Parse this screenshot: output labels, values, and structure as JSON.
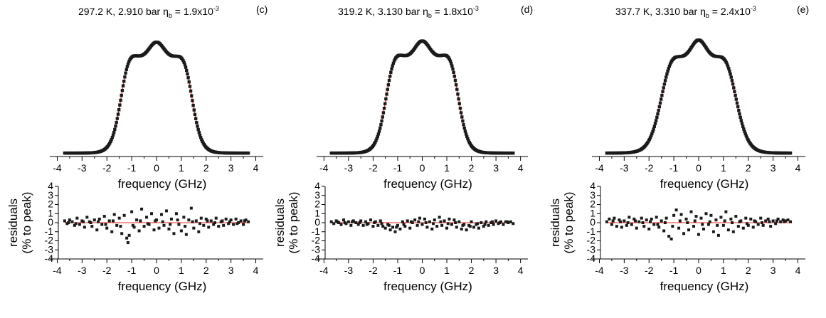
{
  "colors": {
    "data_points": "#1a1a1a",
    "fit_line": "#e03020",
    "axes": "#000000"
  },
  "panels": [
    {
      "letter": "(c)",
      "title": "297.2 K, 2.910 bar η",
      "title_sub": "b",
      "title_tail": " = 1.9x10",
      "title_sup": "-3"
    },
    {
      "letter": "(d)",
      "title": "319.2 K, 3.130 bar η",
      "title_sub": "b",
      "title_tail": " = 1.8x10",
      "title_sup": "-3"
    },
    {
      "letter": "(e)",
      "title": "337.7 K, 3.310 bar η",
      "title_sub": "b",
      "title_tail": " = 2.4x10",
      "title_sup": "-3"
    }
  ],
  "chart_data": [
    {
      "type": "scatter",
      "panel": "(c) spectrum",
      "xlabel": "frequency (GHz)",
      "ylabel": "",
      "xlim": [
        -4.3,
        4.3
      ],
      "xticks": [
        -4,
        -3,
        -2,
        -1,
        0,
        1,
        2,
        3,
        4
      ],
      "ylim": [
        0,
        1.18
      ],
      "profile": {
        "half_width": 1.45,
        "edge_width": 0.2,
        "peak_amps": [
          0.13,
          0.11,
          0.1
        ],
        "peak_pos": [
          0,
          -1.2,
          1.2
        ],
        "baseline": 0.03
      },
      "x": [
        -3.7,
        3.7
      ]
    },
    {
      "type": "scatter",
      "panel": "(d) spectrum",
      "xlabel": "frequency (GHz)",
      "ylabel": "",
      "xlim": [
        -4.3,
        4.3
      ],
      "xticks": [
        -4,
        -3,
        -2,
        -1,
        0,
        1,
        2,
        3,
        4
      ],
      "ylim": [
        0,
        1.18
      ],
      "profile": {
        "half_width": 1.5,
        "edge_width": 0.2,
        "peak_amps": [
          0.14,
          0.1,
          0.1
        ],
        "peak_pos": [
          0,
          -1.2,
          1.2
        ],
        "baseline": 0.03
      },
      "x": [
        -3.7,
        3.7
      ]
    },
    {
      "type": "scatter",
      "panel": "(e) spectrum",
      "xlabel": "frequency (GHz)",
      "ylabel": "",
      "xlim": [
        -4.3,
        4.3
      ],
      "xticks": [
        -4,
        -3,
        -2,
        -1,
        0,
        1,
        2,
        3,
        4
      ],
      "ylim": [
        0,
        1.18
      ],
      "profile": {
        "half_width": 1.55,
        "edge_width": 0.24,
        "peak_amps": [
          0.15,
          0.08,
          0.08
        ],
        "peak_pos": [
          0,
          -1.15,
          1.15
        ],
        "baseline": 0.03
      },
      "x": [
        -3.7,
        3.7
      ]
    },
    {
      "type": "scatter",
      "panel": "(c) residuals",
      "xlabel": "frequency (GHz)",
      "ylabel": "residuals (% to peak)",
      "ylabel_lines": [
        "residuals",
        "(% to peak)"
      ],
      "xlim": [
        -4.3,
        4.3
      ],
      "xticks": [
        -4,
        -3,
        -2,
        -1,
        0,
        1,
        2,
        3,
        4
      ],
      "ylim": [
        -4,
        4
      ],
      "yticks": [
        -4,
        -3,
        -2,
        -1,
        0,
        1,
        2,
        3,
        4
      ],
      "residual_points": [
        [
          -3.7,
          0.2
        ],
        [
          -3.6,
          -0.1
        ],
        [
          -3.5,
          0.3
        ],
        [
          -3.4,
          0.1
        ],
        [
          -3.3,
          -0.3
        ],
        [
          -3.2,
          0.5
        ],
        [
          -3.1,
          -0.2
        ],
        [
          -3.0,
          0.2
        ],
        [
          -2.9,
          -0.5
        ],
        [
          -2.8,
          0.6
        ],
        [
          -2.7,
          0.1
        ],
        [
          -2.6,
          -0.4
        ],
        [
          -2.5,
          0.3
        ],
        [
          -2.4,
          -0.8
        ],
        [
          -2.3,
          0.4
        ],
        [
          -2.2,
          -0.2
        ],
        [
          -2.1,
          0.7
        ],
        [
          -2.0,
          -0.6
        ],
        [
          -1.9,
          0.2
        ],
        [
          -1.8,
          -1.0
        ],
        [
          -1.7,
          0.9
        ],
        [
          -1.6,
          -0.3
        ],
        [
          -1.5,
          0.5
        ],
        [
          -1.4,
          -1.2
        ],
        [
          -1.3,
          0.8
        ],
        [
          -1.2,
          -1.7
        ],
        [
          -1.15,
          -2.2
        ],
        [
          -1.1,
          -1.4
        ],
        [
          -1.0,
          1.2
        ],
        [
          -0.9,
          -0.5
        ],
        [
          -0.8,
          0.3
        ],
        [
          -0.7,
          -0.9
        ],
        [
          -0.6,
          1.5
        ],
        [
          -0.5,
          -0.4
        ],
        [
          -0.4,
          0.6
        ],
        [
          -0.3,
          -0.2
        ],
        [
          -0.2,
          1.0
        ],
        [
          -0.1,
          -0.8
        ],
        [
          0.0,
          0.3
        ],
        [
          0.1,
          -0.6
        ],
        [
          0.2,
          0.9
        ],
        [
          0.3,
          -0.3
        ],
        [
          0.4,
          1.3
        ],
        [
          0.5,
          -0.7
        ],
        [
          0.6,
          0.4
        ],
        [
          0.7,
          -1.2
        ],
        [
          0.8,
          1.0
        ],
        [
          0.9,
          -0.2
        ],
        [
          1.0,
          -0.9
        ],
        [
          1.1,
          0.6
        ],
        [
          1.2,
          -1.3
        ],
        [
          1.3,
          0.3
        ],
        [
          1.4,
          1.6
        ],
        [
          1.5,
          -0.6
        ],
        [
          1.6,
          0.2
        ],
        [
          1.7,
          -1.0
        ],
        [
          1.8,
          0.5
        ],
        [
          1.9,
          -0.3
        ],
        [
          2.0,
          0.4
        ],
        [
          2.1,
          -0.5
        ],
        [
          2.2,
          0.2
        ],
        [
          2.3,
          -0.2
        ],
        [
          2.4,
          0.5
        ],
        [
          2.5,
          -0.4
        ],
        [
          2.6,
          0.1
        ],
        [
          2.7,
          -0.3
        ],
        [
          2.8,
          0.4
        ],
        [
          2.9,
          -0.1
        ],
        [
          3.0,
          0.3
        ],
        [
          3.1,
          -0.2
        ],
        [
          3.2,
          0.4
        ],
        [
          3.3,
          0.0
        ],
        [
          3.4,
          0.2
        ],
        [
          3.5,
          -0.2
        ],
        [
          3.6,
          0.3
        ],
        [
          3.7,
          0.1
        ],
        [
          -3.55,
          0.0
        ],
        [
          -3.25,
          -0.1
        ],
        [
          -2.95,
          0.1
        ],
        [
          -2.65,
          0.0
        ],
        [
          -2.35,
          0.1
        ],
        [
          -2.05,
          -0.2
        ],
        [
          -1.75,
          0.2
        ],
        [
          -1.45,
          -0.4
        ],
        [
          -0.95,
          -0.3
        ],
        [
          -0.65,
          0.2
        ],
        [
          -0.35,
          -0.1
        ],
        [
          -0.05,
          0.2
        ],
        [
          0.25,
          0.1
        ],
        [
          0.55,
          -0.2
        ],
        [
          0.85,
          0.3
        ],
        [
          1.15,
          -0.4
        ],
        [
          1.45,
          0.1
        ],
        [
          1.75,
          -0.1
        ],
        [
          2.05,
          0.2
        ],
        [
          2.35,
          0.0
        ],
        [
          2.65,
          0.2
        ],
        [
          2.95,
          0.1
        ],
        [
          3.25,
          -0.1
        ],
        [
          3.55,
          0.2
        ]
      ]
    },
    {
      "type": "scatter",
      "panel": "(d) residuals",
      "xlabel": "frequency (GHz)",
      "ylabel": "residuals (% to peak)",
      "ylabel_lines": [
        "residuals",
        "(% to peak)"
      ],
      "xlim": [
        -4.3,
        4.3
      ],
      "xticks": [
        -4,
        -3,
        -2,
        -1,
        0,
        1,
        2,
        3,
        4
      ],
      "ylim": [
        -4,
        4
      ],
      "yticks": [
        -4,
        -3,
        -2,
        -1,
        0,
        1,
        2,
        3,
        4
      ],
      "residual_points": [
        [
          -3.7,
          0.1
        ],
        [
          -3.6,
          -0.1
        ],
        [
          -3.5,
          0.2
        ],
        [
          -3.4,
          0.0
        ],
        [
          -3.3,
          -0.2
        ],
        [
          -3.2,
          0.3
        ],
        [
          -3.1,
          -0.1
        ],
        [
          -3.0,
          0.1
        ],
        [
          -2.9,
          -0.3
        ],
        [
          -2.8,
          0.2
        ],
        [
          -2.7,
          0.0
        ],
        [
          -2.6,
          -0.2
        ],
        [
          -2.5,
          0.2
        ],
        [
          -2.4,
          -0.3
        ],
        [
          -2.3,
          0.1
        ],
        [
          -2.2,
          -0.1
        ],
        [
          -2.1,
          0.3
        ],
        [
          -2.0,
          -0.4
        ],
        [
          -1.9,
          0.1
        ],
        [
          -1.8,
          -0.3
        ],
        [
          -1.7,
          0.2
        ],
        [
          -1.6,
          -0.4
        ],
        [
          -1.5,
          -0.6
        ],
        [
          -1.4,
          -0.2
        ],
        [
          -1.3,
          -0.8
        ],
        [
          -1.2,
          -0.5
        ],
        [
          -1.1,
          -1.0
        ],
        [
          -1.0,
          -0.3
        ],
        [
          -0.9,
          -0.7
        ],
        [
          -0.8,
          0.1
        ],
        [
          -0.7,
          -0.4
        ],
        [
          -0.6,
          0.2
        ],
        [
          -0.5,
          -0.6
        ],
        [
          -0.4,
          0.0
        ],
        [
          -0.3,
          0.3
        ],
        [
          -0.2,
          -0.3
        ],
        [
          -0.1,
          0.5
        ],
        [
          0.0,
          -0.2
        ],
        [
          0.1,
          0.4
        ],
        [
          0.2,
          -0.5
        ],
        [
          0.3,
          0.1
        ],
        [
          0.4,
          -0.7
        ],
        [
          0.5,
          0.3
        ],
        [
          0.6,
          -0.4
        ],
        [
          0.7,
          0.6
        ],
        [
          0.8,
          -0.3
        ],
        [
          0.9,
          0.2
        ],
        [
          1.0,
          -0.6
        ],
        [
          1.1,
          0.4
        ],
        [
          1.2,
          -0.2
        ],
        [
          1.3,
          0.3
        ],
        [
          1.4,
          -0.5
        ],
        [
          1.5,
          0.1
        ],
        [
          1.6,
          -0.7
        ],
        [
          1.7,
          -0.2
        ],
        [
          1.8,
          -0.8
        ],
        [
          1.9,
          -0.3
        ],
        [
          2.0,
          0.1
        ],
        [
          2.1,
          -0.5
        ],
        [
          2.2,
          -0.2
        ],
        [
          2.3,
          -0.6
        ],
        [
          2.4,
          0.0
        ],
        [
          2.5,
          -0.4
        ],
        [
          2.6,
          0.1
        ],
        [
          2.7,
          -0.3
        ],
        [
          2.8,
          0.0
        ],
        [
          2.9,
          -0.2
        ],
        [
          3.0,
          0.2
        ],
        [
          3.1,
          -0.1
        ],
        [
          3.2,
          0.1
        ],
        [
          3.3,
          -0.2
        ],
        [
          3.4,
          0.1
        ],
        [
          3.5,
          0.0
        ],
        [
          3.6,
          0.1
        ],
        [
          3.7,
          -0.1
        ],
        [
          -3.45,
          0.1
        ],
        [
          -3.15,
          0.0
        ],
        [
          -2.85,
          0.1
        ],
        [
          -2.55,
          0.0
        ],
        [
          -2.25,
          -0.2
        ],
        [
          -1.95,
          0.0
        ],
        [
          -1.65,
          -0.1
        ],
        [
          -1.35,
          -0.3
        ],
        [
          -1.05,
          -0.5
        ],
        [
          -0.75,
          -0.2
        ],
        [
          -0.45,
          0.1
        ],
        [
          -0.15,
          0.1
        ],
        [
          0.15,
          0.0
        ],
        [
          0.45,
          -0.1
        ],
        [
          0.75,
          0.1
        ],
        [
          1.05,
          -0.1
        ],
        [
          1.35,
          0.0
        ],
        [
          1.65,
          -0.3
        ],
        [
          1.95,
          -0.4
        ],
        [
          2.25,
          -0.1
        ],
        [
          2.55,
          -0.2
        ],
        [
          2.85,
          0.1
        ],
        [
          3.15,
          0.0
        ],
        [
          3.45,
          0.1
        ]
      ]
    },
    {
      "type": "scatter",
      "panel": "(e) residuals",
      "xlabel": "frequency (GHz)",
      "ylabel": "residuals (% to peak)",
      "ylabel_lines": [
        "residuals",
        "(% to peak)"
      ],
      "xlim": [
        -4.3,
        4.3
      ],
      "xticks": [
        -4,
        -3,
        -2,
        -1,
        0,
        1,
        2,
        3,
        4
      ],
      "ylim": [
        -4,
        4
      ],
      "yticks": [
        -4,
        -3,
        -2,
        -1,
        0,
        1,
        2,
        3,
        4
      ],
      "residual_points": [
        [
          -3.7,
          0.1
        ],
        [
          -3.6,
          0.4
        ],
        [
          -3.5,
          -0.2
        ],
        [
          -3.4,
          0.5
        ],
        [
          -3.3,
          -0.4
        ],
        [
          -3.2,
          0.3
        ],
        [
          -3.1,
          -0.5
        ],
        [
          -3.0,
          0.2
        ],
        [
          -2.9,
          -0.3
        ],
        [
          -2.8,
          0.6
        ],
        [
          -2.7,
          -0.2
        ],
        [
          -2.6,
          0.4
        ],
        [
          -2.5,
          -0.6
        ],
        [
          -2.4,
          0.1
        ],
        [
          -2.3,
          0.5
        ],
        [
          -2.2,
          -0.4
        ],
        [
          -2.1,
          0.3
        ],
        [
          -2.0,
          -0.7
        ],
        [
          -1.9,
          0.4
        ],
        [
          -1.8,
          -0.2
        ],
        [
          -1.7,
          0.6
        ],
        [
          -1.6,
          -0.5
        ],
        [
          -1.5,
          0.2
        ],
        [
          -1.4,
          -0.9
        ],
        [
          -1.3,
          0.5
        ],
        [
          -1.2,
          -1.5
        ],
        [
          -1.1,
          -1.8
        ],
        [
          -1.0,
          0.8
        ],
        [
          -0.9,
          1.4
        ],
        [
          -0.8,
          -0.6
        ],
        [
          -0.7,
          0.9
        ],
        [
          -0.6,
          -1.2
        ],
        [
          -0.5,
          0.4
        ],
        [
          -0.4,
          -0.8
        ],
        [
          -0.3,
          1.2
        ],
        [
          -0.2,
          -0.4
        ],
        [
          -0.1,
          0.7
        ],
        [
          0.0,
          -1.3
        ],
        [
          0.1,
          0.5
        ],
        [
          0.2,
          -0.7
        ],
        [
          0.3,
          1.0
        ],
        [
          0.4,
          -0.2
        ],
        [
          0.5,
          0.8
        ],
        [
          0.6,
          -1.0
        ],
        [
          0.7,
          0.3
        ],
        [
          0.8,
          -1.4
        ],
        [
          0.9,
          0.6
        ],
        [
          1.0,
          -0.3
        ],
        [
          1.1,
          1.2
        ],
        [
          1.2,
          -0.8
        ],
        [
          1.3,
          0.4
        ],
        [
          1.4,
          -1.0
        ],
        [
          1.5,
          0.7
        ],
        [
          1.6,
          -0.4
        ],
        [
          1.7,
          0.2
        ],
        [
          1.8,
          -0.6
        ],
        [
          1.9,
          0.5
        ],
        [
          2.0,
          -0.3
        ],
        [
          2.1,
          0.4
        ],
        [
          2.2,
          -0.5
        ],
        [
          2.3,
          0.1
        ],
        [
          2.4,
          -0.2
        ],
        [
          2.5,
          0.5
        ],
        [
          2.6,
          -0.3
        ],
        [
          2.7,
          0.2
        ],
        [
          2.8,
          0.4
        ],
        [
          2.9,
          -0.4
        ],
        [
          3.0,
          0.2
        ],
        [
          3.1,
          -0.1
        ],
        [
          3.2,
          0.4
        ],
        [
          3.3,
          0.1
        ],
        [
          3.4,
          0.3
        ],
        [
          3.5,
          0.2
        ],
        [
          3.6,
          0.3
        ],
        [
          3.7,
          0.1
        ],
        [
          -3.45,
          0.2
        ],
        [
          -3.15,
          0.1
        ],
        [
          -2.85,
          0.0
        ],
        [
          -2.55,
          0.2
        ],
        [
          -2.25,
          0.0
        ],
        [
          -1.95,
          0.1
        ],
        [
          -1.65,
          -0.2
        ],
        [
          -1.35,
          0.0
        ],
        [
          -1.05,
          -0.4
        ],
        [
          -0.75,
          0.2
        ],
        [
          -0.45,
          0.0
        ],
        [
          -0.15,
          0.2
        ],
        [
          0.15,
          -0.2
        ],
        [
          0.45,
          0.1
        ],
        [
          0.75,
          -0.3
        ],
        [
          1.05,
          0.2
        ],
        [
          1.35,
          0.0
        ],
        [
          1.65,
          0.1
        ],
        [
          1.95,
          -0.1
        ],
        [
          2.25,
          0.2
        ],
        [
          2.55,
          0.0
        ],
        [
          2.85,
          0.1
        ],
        [
          3.15,
          0.2
        ],
        [
          3.45,
          0.1
        ]
      ]
    }
  ]
}
